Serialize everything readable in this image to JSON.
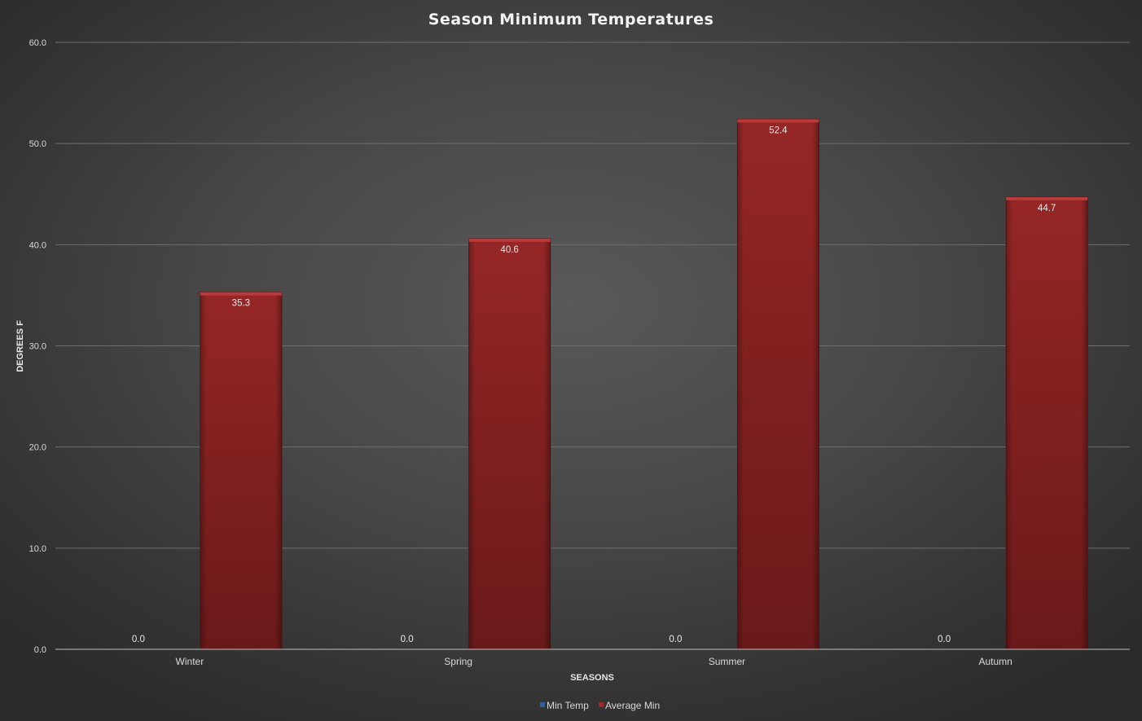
{
  "chart_data": {
    "type": "bar",
    "title": "Season Minimum Temperatures",
    "xlabel": "SEASONS",
    "ylabel": "DEGREES F",
    "categories": [
      "Winter",
      "Spring",
      "Summer",
      "Autumn"
    ],
    "series": [
      {
        "name": "Min Temp",
        "values": [
          0.0,
          0.0,
          0.0,
          0.0
        ],
        "color": "#2e5f9e"
      },
      {
        "name": "Average Min",
        "values": [
          35.3,
          40.6,
          52.4,
          44.7
        ],
        "color": "#8b2323"
      }
    ],
    "ylim": [
      0,
      60
    ],
    "yticks": [
      "0.0",
      "10.0",
      "20.0",
      "30.0",
      "40.0",
      "50.0",
      "60.0"
    ],
    "data_labels": true,
    "grid": true,
    "legend_position": "bottom"
  }
}
